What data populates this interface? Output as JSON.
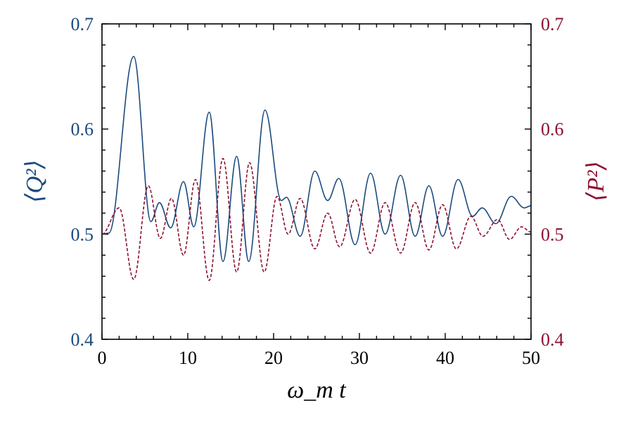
{
  "chart_data": {
    "type": "line",
    "xlabel": "ω_m t",
    "xlim": [
      0,
      50
    ],
    "xticks": [
      "0",
      "10",
      "20",
      "30",
      "40",
      "50"
    ],
    "ylabel_left": "⟨Q²⟩",
    "ylabel_right": "⟨P²⟩",
    "ylim_left": [
      0.4,
      0.7
    ],
    "ylim_right": [
      0.4,
      0.7
    ],
    "yticks_left": [
      "0.4",
      "0.5",
      "0.6",
      "0.7"
    ],
    "yticks_right": [
      "0.4",
      "0.5",
      "0.6",
      "0.7"
    ],
    "grid": false,
    "series": [
      {
        "axis": "left",
        "color": "#1b4a7e",
        "style": "solid",
        "x": [
          0,
          0.8,
          3.7,
          5.7,
          6.7,
          8.0,
          9.5,
          10.7,
          12.5,
          14.1,
          15.7,
          17.1,
          19.0,
          20.9,
          21.5,
          23.1,
          24.8,
          26.3,
          27.6,
          29.5,
          31.3,
          33.0,
          34.8,
          36.5,
          38.1,
          39.7,
          41.5,
          43.2,
          44.3,
          45.9,
          47.7,
          49.2,
          50
        ],
        "y": [
          0.5,
          0.501,
          0.669,
          0.512,
          0.53,
          0.506,
          0.55,
          0.507,
          0.616,
          0.474,
          0.574,
          0.474,
          0.618,
          0.532,
          0.535,
          0.498,
          0.56,
          0.532,
          0.553,
          0.49,
          0.558,
          0.5,
          0.556,
          0.498,
          0.546,
          0.498,
          0.552,
          0.517,
          0.525,
          0.51,
          0.536,
          0.525,
          0.527
        ]
      },
      {
        "axis": "right",
        "color": "#8c1230",
        "style": "dashed",
        "x": [
          0,
          2.0,
          3.7,
          5.4,
          6.8,
          8.1,
          9.5,
          10.9,
          12.5,
          14.1,
          15.7,
          17.2,
          18.9,
          20.4,
          21.7,
          23.1,
          24.8,
          26.3,
          27.7,
          29.5,
          31.3,
          33.0,
          34.8,
          36.5,
          38.1,
          39.7,
          41.3,
          43.0,
          44.4,
          46.1,
          47.5,
          48.9,
          50
        ],
        "y": [
          0.5,
          0.525,
          0.457,
          0.546,
          0.496,
          0.534,
          0.48,
          0.552,
          0.456,
          0.572,
          0.464,
          0.568,
          0.464,
          0.536,
          0.5,
          0.534,
          0.486,
          0.52,
          0.488,
          0.533,
          0.482,
          0.53,
          0.482,
          0.53,
          0.485,
          0.528,
          0.486,
          0.517,
          0.498,
          0.514,
          0.495,
          0.507,
          0.502
        ]
      }
    ]
  }
}
